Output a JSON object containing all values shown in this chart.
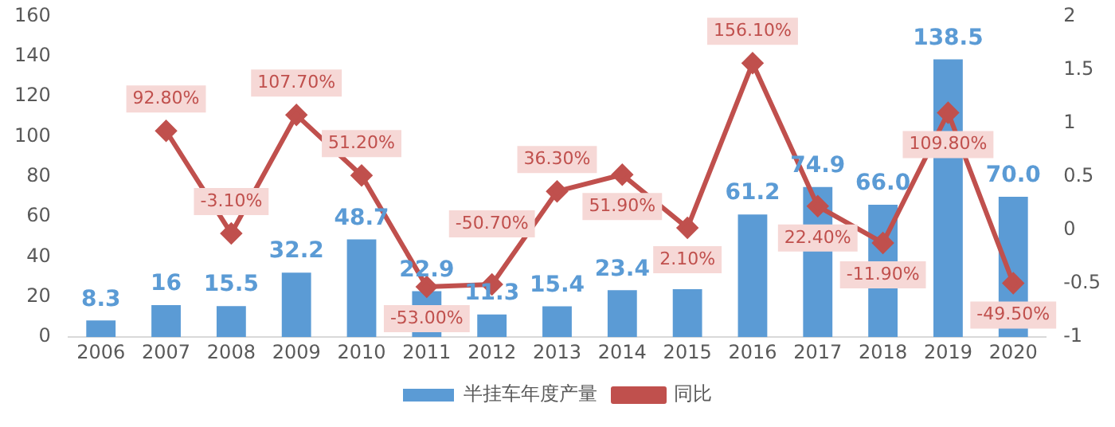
{
  "chart_data": {
    "type": "bar",
    "categories": [
      "2006",
      "2007",
      "2008",
      "2009",
      "2010",
      "2011",
      "2012",
      "2013",
      "2014",
      "2015",
      "2016",
      "2017",
      "2018",
      "2019",
      "2020"
    ],
    "series": [
      {
        "name": "半挂车年度产量",
        "color": "#5b9bd5",
        "values": [
          8.3,
          16,
          15.5,
          32.2,
          48.7,
          22.9,
          11.3,
          15.4,
          23.4,
          23.9,
          61.2,
          74.9,
          66.0,
          138.5,
          70.0
        ],
        "value_labels": [
          "8.3",
          "16",
          "15.5",
          "32.2",
          "48.7",
          "22.9",
          "11.3",
          "15.4",
          "23.4",
          null,
          "61.2",
          "74.9",
          "66.0",
          "138.5",
          "70.0"
        ]
      },
      {
        "name": "同比",
        "type": "line",
        "axis": "y2",
        "color": "#c0504d",
        "marker": "diamond",
        "values": [
          null,
          0.928,
          -0.031,
          1.077,
          0.512,
          -0.53,
          -0.507,
          0.363,
          0.519,
          0.021,
          1.561,
          0.224,
          -0.119,
          1.098,
          -0.495
        ],
        "value_labels": [
          null,
          "92.80%",
          "-3.10%",
          "107.70%",
          "51.20%",
          "-53.00%",
          "-50.70%",
          "36.30%",
          "51.90%",
          "2.10%",
          "156.10%",
          "22.40%",
          "-11.90%",
          "109.80%",
          "-49.50%"
        ]
      }
    ],
    "ylim": [
      0,
      160
    ],
    "yticks": [
      0,
      20,
      40,
      60,
      80,
      100,
      120,
      140,
      160
    ],
    "y2lim": [
      -1,
      2
    ],
    "y2ticks": [
      -1,
      -0.5,
      0,
      0.5,
      1,
      1.5,
      2
    ],
    "grid": false,
    "legend": "bottom"
  }
}
